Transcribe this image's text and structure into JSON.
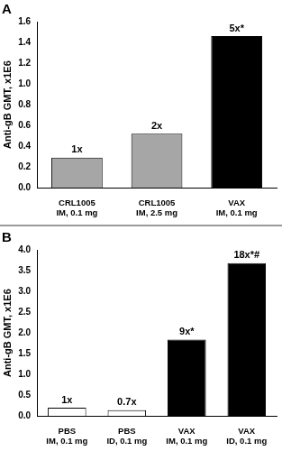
{
  "chart_data": [
    {
      "type": "bar",
      "title": "A",
      "y_label": "Anti-gB GMT, x1E6",
      "categories": [
        [
          "CRL1005",
          "IM, 0.1 mg"
        ],
        [
          "CRL1005",
          "IM, 2.5 mg"
        ],
        [
          "VAX",
          "IM, 0.1 mg"
        ]
      ],
      "values": [
        0.29,
        0.52,
        1.46
      ],
      "colors": [
        "#a6a6a6",
        "#a6a6a6",
        "#000000"
      ],
      "data_labels": true,
      "value_labels": [
        "1x",
        "2x",
        "5x*"
      ],
      "ylim": [
        0,
        1.6
      ],
      "yticks": [
        {
          "value": 0,
          "label": "0.0"
        },
        0.2,
        0.4,
        0.6,
        0.8,
        {
          "value": 1,
          "label": "1.0"
        },
        1.2,
        1.4,
        1.6
      ],
      "grid": false
    },
    {
      "type": "bar",
      "title": "B",
      "y_label": "Anti-gB GMT, x1E6",
      "categories": [
        [
          "PBS",
          "IM, 0.1 mg"
        ],
        [
          "PBS",
          "ID, 0.1 mg"
        ],
        [
          "VAX",
          "IM, 0.1 mg"
        ],
        [
          "VAX",
          "ID, 0.1 mg"
        ]
      ],
      "values": [
        0.2,
        0.14,
        1.84,
        3.68
      ],
      "colors": [
        "#ffffff",
        "#ffffff",
        "#000000",
        "#000000"
      ],
      "data_labels": true,
      "value_labels": [
        "1x",
        "0.7x",
        "9x*",
        "18x*#"
      ],
      "ylim": [
        0,
        4
      ],
      "yticks": [
        {
          "value": 0,
          "label": "0.0"
        },
        0.5,
        {
          "value": 1,
          "label": "1.0"
        },
        1.5,
        {
          "value": 2,
          "label": "2.0"
        },
        2.5,
        {
          "value": 3,
          "label": "3.0"
        },
        3.5,
        {
          "value": 4,
          "label": "4.0"
        }
      ],
      "grid": false
    }
  ]
}
